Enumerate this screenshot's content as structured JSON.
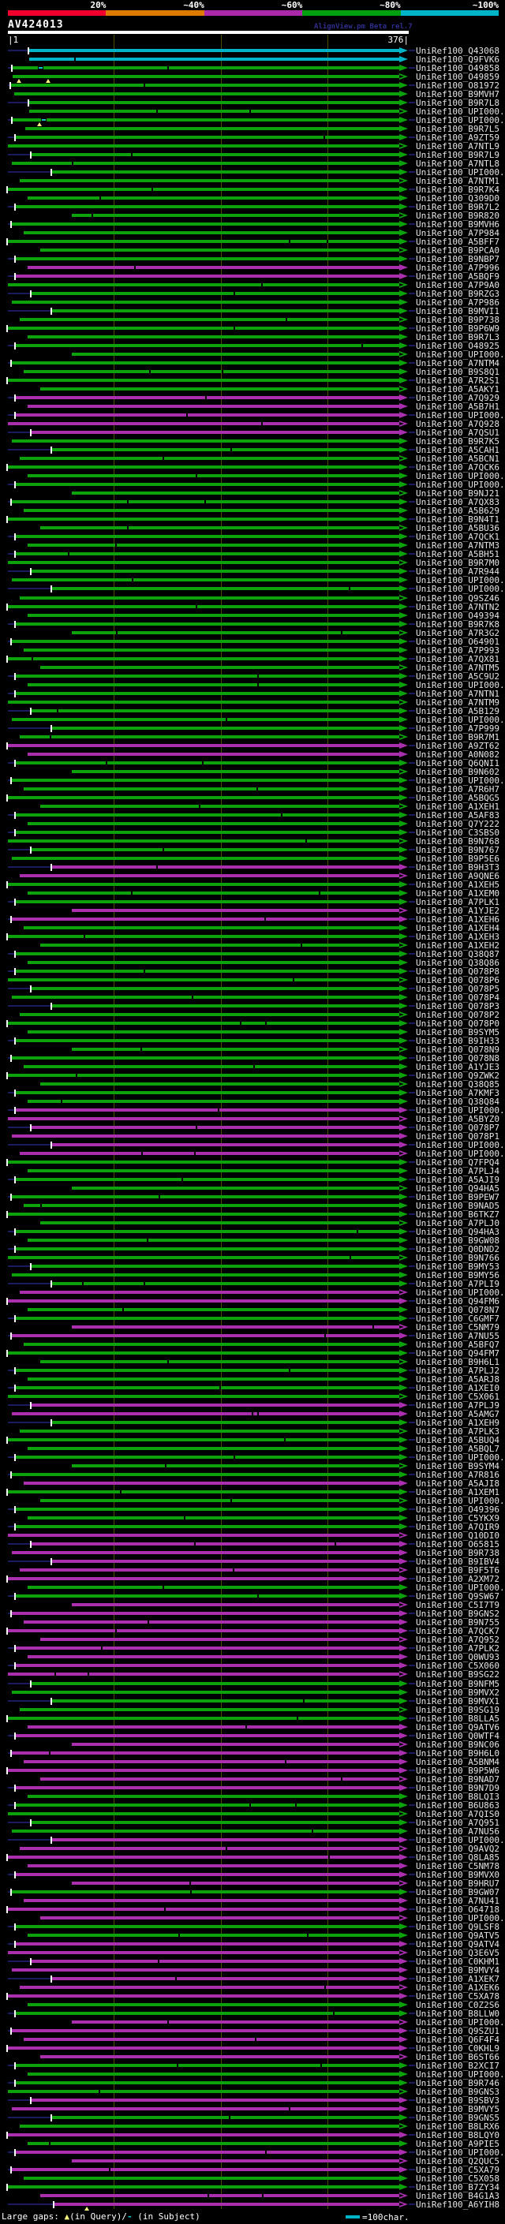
{
  "scale": {
    "segments": [
      {
        "label": "20%",
        "color": "#f1002e"
      },
      {
        "label": "~40%",
        "color": "#dd7a00"
      },
      {
        "label": "~60%",
        "color": "#aa28aa"
      },
      {
        "label": "~80%",
        "color": "#00a010"
      },
      {
        "label": "~100%",
        "color": "#00b4c8"
      }
    ]
  },
  "header": {
    "title": "AV424013",
    "watermark": "AlignView.pm Beta rel.7"
  },
  "ruler": {
    "start_label": "|1",
    "end_label": "376|",
    "start": 1,
    "end": 376,
    "gridline_positions": [
      100,
      200,
      300
    ]
  },
  "palette": {
    "g": "#0ca20c",
    "m": "#aa2fae",
    "c": "#00b4c8",
    "leader": "#1a1a5e",
    "grid": "#4f4f00",
    "gap": "#f5f580",
    "break": "#00c8c8"
  },
  "label_prefix": "UniRef100_",
  "legend": {
    "prefix": "Large gaps: ",
    "query_symbol": "▲",
    "query_text": "(in Query)/",
    "subject_symbol": "-",
    "subject_text": " (in Subject)",
    "scalebar_text": "=100char."
  },
  "gap_markers": {
    "4": [
      2.8,
      10
    ],
    "9": [
      7.8
    ],
    "249": [
      19.7
    ]
  },
  "break_markers": {
    "3": [
      7.5
    ],
    "9": [
      8.3
    ]
  },
  "rows": [
    [
      "Q43068",
      "c",
      5.3,
      1,
      0
    ],
    [
      "Q9FVK6",
      "c",
      5.3,
      0,
      0
    ],
    [
      "O49858",
      "g",
      1.2,
      1,
      0
    ],
    [
      "O49859",
      "g",
      1.2,
      0,
      1
    ],
    [
      "O81972",
      "g",
      0.8,
      1,
      0
    ],
    [
      "B9MVH7",
      "g",
      1.6,
      0,
      0
    ],
    [
      "B9R7L8",
      "g",
      5.3,
      1,
      0
    ],
    [
      "UPI000..",
      "g",
      5.3,
      0,
      1
    ],
    [
      "UPI000..",
      "g",
      1.2,
      1,
      0
    ],
    [
      "B9R7L5",
      "g",
      4.3,
      0,
      0
    ],
    [
      "A9ZT59",
      "g",
      2,
      1,
      0
    ],
    [
      "A7NTL9",
      "g",
      0,
      0,
      1
    ],
    [
      "B9R7L9",
      "g",
      6,
      1,
      0
    ],
    [
      "A7NTL8",
      "g",
      1,
      0,
      0
    ],
    [
      "UPI000..",
      "g",
      11,
      1,
      0
    ],
    [
      "A7NTM1",
      "g",
      3,
      0,
      1
    ],
    [
      "B9R7K4",
      "g",
      0,
      1,
      0
    ],
    [
      "Q309D0",
      "g",
      5,
      0,
      0
    ],
    [
      "B9R7L2",
      "g",
      2,
      1,
      0
    ],
    [
      "B9R820",
      "g",
      16,
      0,
      1
    ],
    [
      "B9MVH6",
      "g",
      1,
      1,
      0
    ],
    [
      "A7P984",
      "g",
      4,
      0,
      0
    ],
    [
      "A5BFF7",
      "g",
      0,
      1,
      0
    ],
    [
      "B9PCA0",
      "g",
      8,
      0,
      1
    ],
    [
      "B9NBP7",
      "g",
      2,
      1,
      0
    ],
    [
      "A7P996",
      "m",
      5,
      0,
      0
    ],
    [
      "A5BQF9",
      "m",
      2,
      1,
      0
    ],
    [
      "A7P9A0",
      "g",
      0,
      0,
      1
    ],
    [
      "B9RZG3",
      "g",
      6,
      1,
      0
    ],
    [
      "A7P986",
      "g",
      1,
      0,
      0
    ],
    [
      "B9MVI1",
      "g",
      11,
      1,
      0
    ],
    [
      "B9P738",
      "g",
      3,
      0,
      1
    ],
    [
      "B9P6W9",
      "g",
      0,
      1,
      0
    ],
    [
      "B9R7L3",
      "g",
      5,
      0,
      0
    ],
    [
      "O48925",
      "g",
      2,
      1,
      0
    ],
    [
      "UPI000..",
      "g",
      16,
      0,
      1
    ],
    [
      "A7NTM4",
      "g",
      1,
      1,
      0
    ],
    [
      "B9S8Q1",
      "g",
      4,
      0,
      0
    ],
    [
      "A7R2S1",
      "g",
      0,
      1,
      0
    ],
    [
      "A5AKY1",
      "g",
      8,
      0,
      1
    ],
    [
      "A7Q929",
      "m",
      2,
      1,
      0
    ],
    [
      "A5B7H1",
      "m",
      5,
      0,
      0
    ],
    [
      "UPI000..",
      "m",
      2,
      1,
      0
    ],
    [
      "A7Q928",
      "m",
      0,
      0,
      1
    ],
    [
      "A7QSU1",
      "m",
      6,
      1,
      0
    ],
    [
      "B9R7K5",
      "g",
      1,
      0,
      0
    ],
    [
      "A5CAH1",
      "g",
      11,
      1,
      0
    ],
    [
      "A5BCN1",
      "g",
      3,
      0,
      1
    ],
    [
      "A7QCK6",
      "g",
      0,
      1,
      0
    ],
    [
      "UPI000..",
      "g",
      5,
      0,
      0
    ],
    [
      "UPI000..",
      "g",
      2,
      1,
      0
    ],
    [
      "B9NJ21",
      "g",
      16,
      0,
      1
    ],
    [
      "A7QX83",
      "g",
      1,
      1,
      0
    ],
    [
      "A5B629",
      "g",
      4,
      0,
      0
    ],
    [
      "B9N4T1",
      "g",
      0,
      1,
      0
    ],
    [
      "A5BU36",
      "g",
      8,
      0,
      1
    ],
    [
      "A7QCK1",
      "g",
      2,
      1,
      0
    ],
    [
      "A7NTM3",
      "g",
      5,
      0,
      0
    ],
    [
      "A5BH51",
      "g",
      2,
      1,
      0
    ],
    [
      "B9R7M0",
      "g",
      0,
      0,
      1
    ],
    [
      "A7R944",
      "g",
      6,
      1,
      0
    ],
    [
      "UPI000..",
      "g",
      1,
      0,
      0
    ],
    [
      "UPI000..",
      "g",
      11,
      1,
      0
    ],
    [
      "Q9SZ46",
      "g",
      3,
      0,
      1
    ],
    [
      "A7NTN2",
      "g",
      0,
      1,
      0
    ],
    [
      "O49394",
      "g",
      5,
      0,
      0
    ],
    [
      "B9R7K8",
      "g",
      2,
      1,
      0
    ],
    [
      "A7R3G2",
      "g",
      16,
      0,
      1
    ],
    [
      "O64901",
      "g",
      1,
      1,
      0
    ],
    [
      "A7P993",
      "g",
      4,
      0,
      0
    ],
    [
      "A7QX81",
      "g",
      0,
      1,
      0
    ],
    [
      "A7NTM5",
      "g",
      8,
      0,
      1
    ],
    [
      "A5C9U2",
      "g",
      2,
      1,
      0
    ],
    [
      "UPI000..",
      "g",
      5,
      0,
      0
    ],
    [
      "A7NTN1",
      "g",
      2,
      1,
      0
    ],
    [
      "A7NTM9",
      "g",
      0,
      0,
      1
    ],
    [
      "A5B129",
      "g",
      6,
      1,
      0
    ],
    [
      "UPI000..",
      "g",
      1,
      0,
      0
    ],
    [
      "A7P999",
      "g",
      11,
      1,
      0
    ],
    [
      "B9R7M1",
      "g",
      3,
      0,
      1
    ],
    [
      "A9ZT62",
      "m",
      0,
      1,
      0
    ],
    [
      "A0N082",
      "m",
      5,
      0,
      0
    ],
    [
      "Q6QNI1",
      "g",
      2,
      1,
      0
    ],
    [
      "B9N602",
      "g",
      16,
      0,
      1
    ],
    [
      "UPI000..",
      "g",
      1,
      1,
      0
    ],
    [
      "A7R6H7",
      "g",
      4,
      0,
      0
    ],
    [
      "A5BQG5",
      "g",
      0,
      1,
      0
    ],
    [
      "A1XEH1",
      "g",
      8,
      0,
      1
    ],
    [
      "A5AF83",
      "g",
      2,
      1,
      0
    ],
    [
      "Q7Y222",
      "g",
      5,
      0,
      0
    ],
    [
      "C3SBS0",
      "g",
      2,
      1,
      0
    ],
    [
      "B9N768",
      "g",
      0,
      0,
      1
    ],
    [
      "B9N767",
      "g",
      6,
      1,
      0
    ],
    [
      "B9P5E6",
      "g",
      1,
      0,
      0
    ],
    [
      "B9H3T3",
      "m",
      11,
      1,
      0
    ],
    [
      "A9QNE6",
      "m",
      3,
      0,
      1
    ],
    [
      "A1XEH5",
      "g",
      0,
      1,
      0
    ],
    [
      "A1XEM0",
      "g",
      5,
      0,
      0
    ],
    [
      "A7PLK1",
      "g",
      2,
      1,
      0
    ],
    [
      "A1YJE2",
      "m",
      16,
      0,
      1
    ],
    [
      "A1XEH6",
      "m",
      1,
      1,
      0
    ],
    [
      "A1XEH4",
      "g",
      4,
      0,
      0
    ],
    [
      "A1XEH3",
      "g",
      0,
      1,
      0
    ],
    [
      "A1XEH2",
      "g",
      8,
      0,
      1
    ],
    [
      "Q38Q87",
      "g",
      2,
      1,
      0
    ],
    [
      "Q38Q86",
      "g",
      5,
      0,
      0
    ],
    [
      "Q078P8",
      "g",
      2,
      1,
      0
    ],
    [
      "Q078P6",
      "g",
      0,
      0,
      1
    ],
    [
      "Q078P5",
      "g",
      6,
      1,
      0
    ],
    [
      "Q078P4",
      "g",
      1,
      0,
      0
    ],
    [
      "Q078P3",
      "g",
      11,
      1,
      0
    ],
    [
      "Q078P2",
      "g",
      3,
      0,
      1
    ],
    [
      "Q078P0",
      "g",
      0,
      1,
      0
    ],
    [
      "B9SYM5",
      "g",
      5,
      0,
      0
    ],
    [
      "B9IH33",
      "g",
      2,
      1,
      0
    ],
    [
      "Q078N9",
      "g",
      16,
      0,
      1
    ],
    [
      "Q078N8",
      "g",
      1,
      1,
      0
    ],
    [
      "A1YJE3",
      "g",
      4,
      0,
      0
    ],
    [
      "Q9ZWK2",
      "g",
      0,
      1,
      0
    ],
    [
      "Q38Q85",
      "g",
      8,
      0,
      1
    ],
    [
      "A7KMF3",
      "g",
      2,
      1,
      0
    ],
    [
      "Q38Q84",
      "g",
      5,
      0,
      0
    ],
    [
      "UPI000..",
      "m",
      2,
      1,
      0
    ],
    [
      "A5BYZ0",
      "m",
      0,
      0,
      1
    ],
    [
      "Q078P7",
      "m",
      6,
      1,
      0
    ],
    [
      "Q078P1",
      "m",
      1,
      0,
      0
    ],
    [
      "UPI000..",
      "m",
      11,
      1,
      0
    ],
    [
      "UPI000..",
      "m",
      3,
      0,
      1
    ],
    [
      "Q7FPQ4",
      "g",
      0,
      1,
      0
    ],
    [
      "A7PLJ4",
      "g",
      5,
      0,
      0
    ],
    [
      "A5AJI9",
      "g",
      2,
      1,
      0
    ],
    [
      "Q94HA5",
      "g",
      16,
      0,
      1
    ],
    [
      "B9PEW7",
      "g",
      1,
      1,
      0
    ],
    [
      "B9NAD5",
      "g",
      4,
      0,
      0
    ],
    [
      "B6TKZ7",
      "g",
      0,
      1,
      0
    ],
    [
      "A7PLJ0",
      "g",
      8,
      0,
      1
    ],
    [
      "Q94HA3",
      "g",
      2,
      1,
      0
    ],
    [
      "B9GW08",
      "g",
      5,
      0,
      0
    ],
    [
      "Q0DND2",
      "g",
      2,
      1,
      0
    ],
    [
      "B9N766",
      "g",
      0,
      0,
      1
    ],
    [
      "B9MY53",
      "g",
      6,
      1,
      0
    ],
    [
      "B9MY56",
      "g",
      1,
      0,
      0
    ],
    [
      "A7PLI9",
      "g",
      11,
      1,
      0
    ],
    [
      "UPI000..",
      "m",
      3,
      0,
      1
    ],
    [
      "Q94FM6",
      "m",
      0,
      1,
      0
    ],
    [
      "Q078N7",
      "g",
      5,
      0,
      0
    ],
    [
      "C6GMF7",
      "g",
      2,
      1,
      0
    ],
    [
      "C5NM79",
      "m",
      16,
      0,
      1
    ],
    [
      "A7NU55",
      "m",
      1,
      1,
      0
    ],
    [
      "A5BFQ7",
      "g",
      4,
      0,
      0
    ],
    [
      "Q94FM7",
      "g",
      0,
      1,
      0
    ],
    [
      "B9H6L1",
      "g",
      8,
      0,
      1
    ],
    [
      "A7PLJ2",
      "g",
      2,
      1,
      0
    ],
    [
      "A5ARJ8",
      "g",
      5,
      0,
      0
    ],
    [
      "A1XEI0",
      "g",
      2,
      1,
      0
    ],
    [
      "C5X061",
      "g",
      0,
      0,
      1
    ],
    [
      "A7PLJ9",
      "m",
      6,
      1,
      0
    ],
    [
      "A5AMG7",
      "m",
      1,
      0,
      0
    ],
    [
      "A1XEH9",
      "g",
      11,
      1,
      0
    ],
    [
      "A7PLK3",
      "g",
      3,
      0,
      1
    ],
    [
      "A5BUQ4",
      "g",
      0,
      1,
      0
    ],
    [
      "A5BQL7",
      "g",
      5,
      0,
      0
    ],
    [
      "UPI000..",
      "g",
      2,
      1,
      0
    ],
    [
      "B9SYM4",
      "g",
      16,
      0,
      1
    ],
    [
      "A7R816",
      "g",
      1,
      1,
      0
    ],
    [
      "A5AJI8",
      "m",
      4,
      0,
      0
    ],
    [
      "A1XEM1",
      "g",
      0,
      1,
      0
    ],
    [
      "UPI000..",
      "g",
      8,
      0,
      1
    ],
    [
      "O49396",
      "g",
      2,
      1,
      0
    ],
    [
      "C5YKX9",
      "g",
      5,
      0,
      0
    ],
    [
      "A7QIR9",
      "g",
      2,
      1,
      0
    ],
    [
      "Q10DI0",
      "m",
      0,
      0,
      1
    ],
    [
      "O65815",
      "m",
      6,
      1,
      0
    ],
    [
      "B9R738",
      "m",
      1,
      0,
      0
    ],
    [
      "B9IBV4",
      "m",
      11,
      1,
      0
    ],
    [
      "B9F5T6",
      "m",
      3,
      0,
      1
    ],
    [
      "A2XM72",
      "m",
      0,
      1,
      0
    ],
    [
      "UPI000..",
      "g",
      5,
      0,
      0
    ],
    [
      "Q9SW67",
      "g",
      2,
      1,
      0
    ],
    [
      "C5I7T9",
      "m",
      16,
      0,
      1
    ],
    [
      "B9GNS2",
      "m",
      1,
      1,
      0
    ],
    [
      "B9N755",
      "m",
      4,
      0,
      0
    ],
    [
      "A7QCK7",
      "m",
      0,
      1,
      0
    ],
    [
      "A7Q952",
      "m",
      8,
      0,
      1
    ],
    [
      "A7PLK2",
      "m",
      2,
      1,
      0
    ],
    [
      "Q0WU93",
      "m",
      5,
      0,
      0
    ],
    [
      "C5X060",
      "m",
      2,
      1,
      0
    ],
    [
      "B9SG22",
      "m",
      0,
      0,
      1
    ],
    [
      "B9NFM5",
      "g",
      6,
      1,
      0
    ],
    [
      "B9MVX2",
      "g",
      1,
      0,
      0
    ],
    [
      "B9MVX1",
      "g",
      11,
      1,
      0
    ],
    [
      "B9SG19",
      "g",
      3,
      0,
      1
    ],
    [
      "B8LLA5",
      "g",
      0,
      1,
      0
    ],
    [
      "Q9ATV6",
      "m",
      5,
      0,
      0
    ],
    [
      "Q0WTF4",
      "m",
      2,
      1,
      0
    ],
    [
      "B9NC06",
      "m",
      16,
      0,
      1
    ],
    [
      "B9H6L0",
      "m",
      1,
      1,
      0
    ],
    [
      "A5BNM4",
      "m",
      4,
      0,
      0
    ],
    [
      "B9P5W6",
      "m",
      0,
      1,
      0
    ],
    [
      "B9NAD7",
      "m",
      8,
      0,
      1
    ],
    [
      "B9N7D9",
      "m",
      2,
      1,
      0
    ],
    [
      "B8LQI3",
      "g",
      5,
      0,
      0
    ],
    [
      "B6U863",
      "g",
      2,
      1,
      0
    ],
    [
      "A7QIS0",
      "g",
      0,
      0,
      1
    ],
    [
      "A7Q951",
      "g",
      6,
      1,
      0
    ],
    [
      "A7NU56",
      "g",
      1,
      0,
      0
    ],
    [
      "UPI000..",
      "m",
      11,
      1,
      0
    ],
    [
      "Q9AVQ2",
      "m",
      3,
      0,
      1
    ],
    [
      "Q8LA85",
      "m",
      0,
      1,
      0
    ],
    [
      "C5NM78",
      "m",
      5,
      0,
      0
    ],
    [
      "B9MVX0",
      "m",
      2,
      1,
      0
    ],
    [
      "B9HRU7",
      "m",
      16,
      0,
      1
    ],
    [
      "B9GW07",
      "g",
      1,
      1,
      0
    ],
    [
      "A7NU41",
      "m",
      4,
      0,
      0
    ],
    [
      "O64718",
      "m",
      0,
      1,
      0
    ],
    [
      "UPI000..",
      "m",
      8,
      0,
      1
    ],
    [
      "Q9LSF8",
      "g",
      2,
      1,
      0
    ],
    [
      "Q9ATV5",
      "g",
      5,
      0,
      0
    ],
    [
      "Q9ATV4",
      "m",
      2,
      1,
      0
    ],
    [
      "Q3E6V5",
      "m",
      0,
      0,
      1
    ],
    [
      "C0KHM1",
      "m",
      6,
      1,
      0
    ],
    [
      "B9MVY4",
      "m",
      1,
      0,
      0
    ],
    [
      "A1XEK7",
      "m",
      11,
      1,
      0
    ],
    [
      "A1XEK6",
      "m",
      3,
      0,
      1
    ],
    [
      "C5XA78",
      "m",
      0,
      1,
      0
    ],
    [
      "C0Z2S6",
      "g",
      5,
      0,
      0
    ],
    [
      "B8LLW0",
      "g",
      2,
      1,
      0
    ],
    [
      "UPI000..",
      "m",
      16,
      0,
      1
    ],
    [
      "Q9SZU1",
      "m",
      1,
      1,
      0
    ],
    [
      "Q6F4F4",
      "m",
      4,
      0,
      0
    ],
    [
      "C0KHL9",
      "m",
      0,
      1,
      0
    ],
    [
      "B6ST66",
      "m",
      8,
      0,
      1
    ],
    [
      "B2XCI7",
      "g",
      2,
      1,
      0
    ],
    [
      "UPI000..",
      "g",
      5,
      0,
      0
    ],
    [
      "B9R746",
      "g",
      2,
      1,
      0
    ],
    [
      "B9GNS3",
      "g",
      0,
      0,
      1
    ],
    [
      "B9SBV3",
      "m",
      6,
      1,
      0
    ],
    [
      "B9MVY5",
      "m",
      1,
      0,
      0
    ],
    [
      "B9GNS5",
      "g",
      11,
      1,
      0
    ],
    [
      "B8LRX6",
      "g",
      3,
      0,
      1
    ],
    [
      "B8LQY0",
      "m",
      0,
      1,
      0
    ],
    [
      "A9PIE5",
      "g",
      5,
      0,
      0
    ],
    [
      "UPI000..",
      "m",
      2,
      1,
      0
    ],
    [
      "Q2QUC5",
      "m",
      16,
      0,
      1
    ],
    [
      "C5XA79",
      "m",
      1,
      1,
      0
    ],
    [
      "C5X058",
      "g",
      4,
      0,
      0
    ],
    [
      "B7ZY34",
      "g",
      0,
      1,
      0
    ],
    [
      "B4G1A3",
      "m",
      8,
      0,
      1
    ],
    [
      "A6YIH8",
      "m",
      11.6,
      1,
      1
    ]
  ]
}
